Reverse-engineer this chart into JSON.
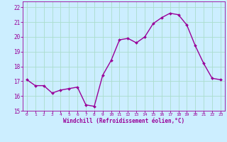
{
  "x": [
    0,
    1,
    2,
    3,
    4,
    5,
    6,
    7,
    8,
    9,
    10,
    11,
    12,
    13,
    14,
    15,
    16,
    17,
    18,
    19,
    20,
    21,
    22,
    23
  ],
  "y": [
    17.1,
    16.7,
    16.7,
    16.2,
    16.4,
    16.5,
    16.6,
    15.4,
    15.3,
    17.4,
    18.4,
    19.8,
    19.9,
    19.6,
    20.0,
    20.9,
    21.3,
    21.6,
    21.5,
    20.8,
    19.4,
    18.2,
    17.2,
    17.1
  ],
  "line_color": "#990099",
  "marker": "D",
  "marker_size": 2,
  "bg_color": "#cceeff",
  "grid_color": "#aaddcc",
  "xlabel": "Windchill (Refroidissement éolien,°C)",
  "xlabel_color": "#990099",
  "tick_color": "#990099",
  "ylim": [
    15,
    22.4
  ],
  "xlim": [
    -0.5,
    23.5
  ],
  "yticks": [
    15,
    16,
    17,
    18,
    19,
    20,
    21,
    22
  ],
  "xticks": [
    0,
    1,
    2,
    3,
    4,
    5,
    6,
    7,
    8,
    9,
    10,
    11,
    12,
    13,
    14,
    15,
    16,
    17,
    18,
    19,
    20,
    21,
    22,
    23
  ]
}
